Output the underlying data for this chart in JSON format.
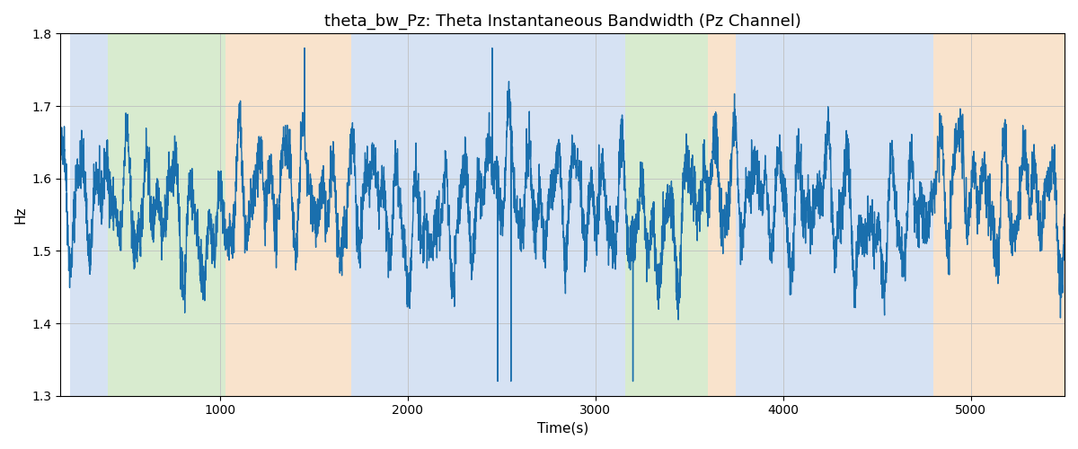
{
  "title": "theta_bw_Pz: Theta Instantaneous Bandwidth (Pz Channel)",
  "xlabel": "Time(s)",
  "ylabel": "Hz",
  "ylim": [
    1.3,
    1.8
  ],
  "xlim": [
    150,
    5500
  ],
  "line_color": "#1a6fad",
  "line_width": 1.0,
  "background_color": "#ffffff",
  "seed": 42,
  "n_points": 5400,
  "bands": [
    {
      "xmin": 200,
      "xmax": 400,
      "color": "#aec6e8",
      "alpha": 0.5
    },
    {
      "xmin": 400,
      "xmax": 1030,
      "color": "#b2d9a0",
      "alpha": 0.5
    },
    {
      "xmin": 1030,
      "xmax": 1700,
      "color": "#f5c89a",
      "alpha": 0.5
    },
    {
      "xmin": 1700,
      "xmax": 3060,
      "color": "#aec6e8",
      "alpha": 0.5
    },
    {
      "xmin": 3060,
      "xmax": 3160,
      "color": "#aec6e8",
      "alpha": 0.5
    },
    {
      "xmin": 3160,
      "xmax": 3600,
      "color": "#b2d9a0",
      "alpha": 0.5
    },
    {
      "xmin": 3600,
      "xmax": 3750,
      "color": "#f5c89a",
      "alpha": 0.5
    },
    {
      "xmin": 3750,
      "xmax": 4800,
      "color": "#aec6e8",
      "alpha": 0.5
    },
    {
      "xmin": 4800,
      "xmax": 5500,
      "color": "#f5c89a",
      "alpha": 0.5
    }
  ],
  "title_fontsize": 13,
  "label_fontsize": 11,
  "tick_fontsize": 10
}
